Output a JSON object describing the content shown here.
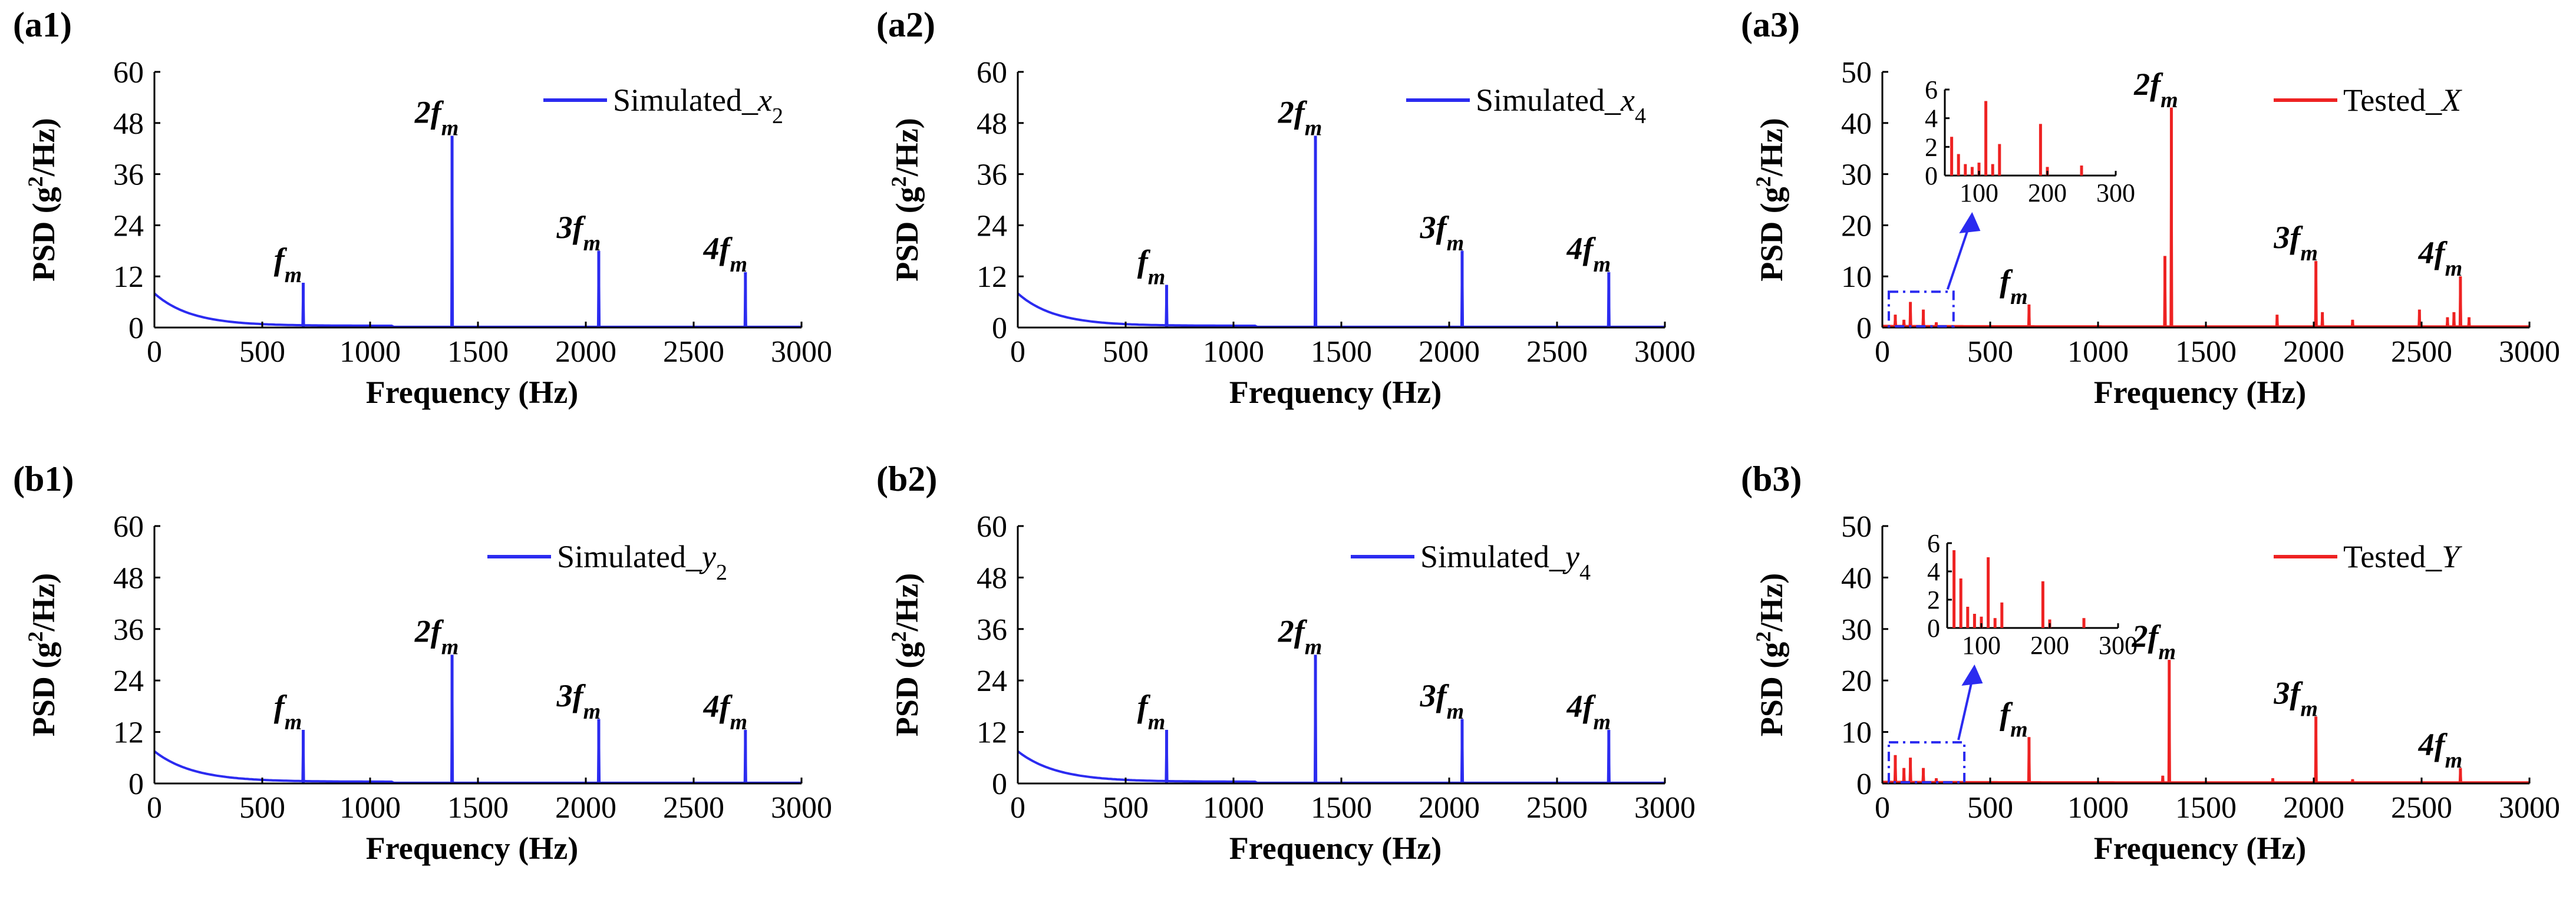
{
  "figure": {
    "colors": {
      "simulated": "#2b2bf0",
      "tested": "#ee2222",
      "axis": "#000000"
    },
    "xlabel": "Frequency (Hz)",
    "ylabel": "PSD (g2/Hz)"
  },
  "chart_data": [
    {
      "id": "a1",
      "panel_label": "(a1)",
      "type": "line",
      "title": "",
      "xlabel": "Frequency (Hz)",
      "ylabel": "PSD (g2/Hz)",
      "xlim": [
        0,
        3000
      ],
      "ylim": [
        0,
        60
      ],
      "xticks": [
        0,
        500,
        1000,
        1500,
        2000,
        2500,
        3000
      ],
      "yticks": [
        0,
        12,
        24,
        36,
        48,
        60
      ],
      "legend": {
        "pre": "Simulated_",
        "var": "x",
        "sub": "2",
        "position": "top-right"
      },
      "color_key": "simulated",
      "baseline": {
        "start": 8,
        "decay": 170,
        "floor": 0.4,
        "end": 1100
      },
      "peaks": [
        [
          690,
          10.5
        ],
        [
          1380,
          45
        ],
        [
          2060,
          18
        ],
        [
          2740,
          13
        ]
      ],
      "annotations": [
        {
          "num": "",
          "x": 690,
          "y": 10.5,
          "base": "f",
          "sub": "m"
        },
        {
          "num": "2",
          "x": 1380,
          "y": 45,
          "base": "f",
          "sub": "m"
        },
        {
          "num": "3",
          "x": 2060,
          "y": 18,
          "base": "f",
          "sub": "m"
        },
        {
          "num": "4",
          "x": 2740,
          "y": 13,
          "base": "f",
          "sub": "m"
        }
      ]
    },
    {
      "id": "a2",
      "panel_label": "(a2)",
      "type": "line",
      "title": "",
      "xlabel": "Frequency (Hz)",
      "ylabel": "PSD (g2/Hz)",
      "xlim": [
        0,
        3000
      ],
      "ylim": [
        0,
        60
      ],
      "xticks": [
        0,
        500,
        1000,
        1500,
        2000,
        2500,
        3000
      ],
      "yticks": [
        0,
        12,
        24,
        36,
        48,
        60
      ],
      "legend": {
        "pre": "Simulated_",
        "var": "x",
        "sub": "4",
        "position": "top-right"
      },
      "color_key": "simulated",
      "baseline": {
        "start": 8,
        "decay": 170,
        "floor": 0.4,
        "end": 1100
      },
      "peaks": [
        [
          690,
          10
        ],
        [
          1380,
          45
        ],
        [
          2060,
          18
        ],
        [
          2740,
          13
        ]
      ],
      "annotations": [
        {
          "num": "",
          "x": 690,
          "y": 10,
          "base": "f",
          "sub": "m"
        },
        {
          "num": "2",
          "x": 1380,
          "y": 45,
          "base": "f",
          "sub": "m"
        },
        {
          "num": "3",
          "x": 2060,
          "y": 18,
          "base": "f",
          "sub": "m"
        },
        {
          "num": "4",
          "x": 2740,
          "y": 13,
          "base": "f",
          "sub": "m"
        }
      ]
    },
    {
      "id": "a3",
      "panel_label": "(a3)",
      "type": "line",
      "title": "",
      "xlabel": "Frequency (Hz)",
      "ylabel": "PSD (g2/Hz)",
      "xlim": [
        0,
        3000
      ],
      "ylim": [
        0,
        50
      ],
      "xticks": [
        0,
        500,
        1000,
        1500,
        2000,
        2500,
        3000
      ],
      "yticks": [
        0,
        10,
        20,
        30,
        40,
        50
      ],
      "legend": {
        "pre": "Tested_",
        "var": "X",
        "sub": "",
        "position": "top-right"
      },
      "color_key": "tested",
      "baseline": {
        "start": 0.3,
        "decay": 500,
        "floor": 0.2,
        "end": 3000
      },
      "peaks": [
        [
          60,
          2.5
        ],
        [
          100,
          1.5
        ],
        [
          130,
          5
        ],
        [
          190,
          3.5
        ],
        [
          250,
          1
        ],
        [
          680,
          4.5
        ],
        [
          1310,
          14
        ],
        [
          1340,
          43
        ],
        [
          1830,
          2.5
        ],
        [
          2010,
          13
        ],
        [
          2040,
          3
        ],
        [
          2180,
          1.5
        ],
        [
          2490,
          3.5
        ],
        [
          2620,
          2
        ],
        [
          2650,
          3
        ],
        [
          2680,
          10
        ],
        [
          2720,
          2
        ]
      ],
      "annotations": [
        {
          "num": "",
          "x": 680,
          "y": 4.5,
          "base": "f",
          "sub": "m"
        },
        {
          "num": "2",
          "x": 1340,
          "y": 43,
          "base": "f",
          "sub": "m"
        },
        {
          "num": "3",
          "x": 2010,
          "y": 13,
          "base": "f",
          "sub": "m"
        },
        {
          "num": "4",
          "x": 2680,
          "y": 10,
          "base": "f",
          "sub": "m"
        }
      ],
      "zoom_box": {
        "xlim": [
          30,
          330
        ],
        "ylim": [
          0,
          7
        ]
      },
      "inset": {
        "xlim": [
          50,
          300
        ],
        "ylim": [
          0,
          6
        ],
        "xticks": [
          100,
          200,
          300
        ],
        "yticks": [
          0,
          2,
          4,
          6
        ],
        "peaks": [
          [
            60,
            2.7
          ],
          [
            70,
            1.5
          ],
          [
            80,
            0.8
          ],
          [
            90,
            0.6
          ],
          [
            100,
            0.9
          ],
          [
            110,
            5.2
          ],
          [
            120,
            0.8
          ],
          [
            130,
            2.2
          ],
          [
            190,
            3.6
          ],
          [
            200,
            0.6
          ],
          [
            250,
            0.7
          ]
        ]
      }
    },
    {
      "id": "b1",
      "panel_label": "(b1)",
      "type": "line",
      "title": "",
      "xlabel": "Frequency (Hz)",
      "ylabel": "PSD (g2/Hz)",
      "xlim": [
        0,
        3000
      ],
      "ylim": [
        0,
        60
      ],
      "xticks": [
        0,
        500,
        1000,
        1500,
        2000,
        2500,
        3000
      ],
      "yticks": [
        0,
        12,
        24,
        36,
        48,
        60
      ],
      "legend": {
        "pre": "Simulated_",
        "var": "y",
        "sub": "2",
        "position": "top-right"
      },
      "color_key": "simulated",
      "baseline": {
        "start": 7.5,
        "decay": 180,
        "floor": 0.4,
        "end": 1100
      },
      "peaks": [
        [
          690,
          12.5
        ],
        [
          1380,
          30
        ],
        [
          2060,
          15
        ],
        [
          2740,
          12.5
        ]
      ],
      "annotations": [
        {
          "num": "",
          "x": 690,
          "y": 12.5,
          "base": "f",
          "sub": "m"
        },
        {
          "num": "2",
          "x": 1380,
          "y": 30,
          "base": "f",
          "sub": "m"
        },
        {
          "num": "3",
          "x": 2060,
          "y": 15,
          "base": "f",
          "sub": "m"
        },
        {
          "num": "4",
          "x": 2740,
          "y": 12.5,
          "base": "f",
          "sub": "m"
        }
      ]
    },
    {
      "id": "b2",
      "panel_label": "(b2)",
      "type": "line",
      "title": "",
      "xlabel": "Frequency (Hz)",
      "ylabel": "PSD (g2/Hz)",
      "xlim": [
        0,
        3000
      ],
      "ylim": [
        0,
        60
      ],
      "xticks": [
        0,
        500,
        1000,
        1500,
        2000,
        2500,
        3000
      ],
      "yticks": [
        0,
        12,
        24,
        36,
        48,
        60
      ],
      "legend": {
        "pre": "Simulated_",
        "var": "y",
        "sub": "4",
        "position": "top-right"
      },
      "color_key": "simulated",
      "baseline": {
        "start": 7.5,
        "decay": 180,
        "floor": 0.4,
        "end": 1100
      },
      "peaks": [
        [
          690,
          12.5
        ],
        [
          1380,
          30
        ],
        [
          2060,
          15
        ],
        [
          2740,
          12.5
        ]
      ],
      "annotations": [
        {
          "num": "",
          "x": 690,
          "y": 12.5,
          "base": "f",
          "sub": "m"
        },
        {
          "num": "2",
          "x": 1380,
          "y": 30,
          "base": "f",
          "sub": "m"
        },
        {
          "num": "3",
          "x": 2060,
          "y": 15,
          "base": "f",
          "sub": "m"
        },
        {
          "num": "4",
          "x": 2740,
          "y": 12.5,
          "base": "f",
          "sub": "m"
        }
      ]
    },
    {
      "id": "b3",
      "panel_label": "(b3)",
      "type": "line",
      "title": "",
      "xlabel": "Frequency (Hz)",
      "ylabel": "PSD (g2/Hz)",
      "xlim": [
        0,
        3000
      ],
      "ylim": [
        0,
        50
      ],
      "xticks": [
        0,
        500,
        1000,
        1500,
        2000,
        2500,
        3000
      ],
      "yticks": [
        0,
        10,
        20,
        30,
        40,
        50
      ],
      "legend": {
        "pre": "Tested_",
        "var": "Y",
        "sub": "",
        "position": "top-right"
      },
      "color_key": "tested",
      "baseline": {
        "start": 0.3,
        "decay": 500,
        "floor": 0.2,
        "end": 3000
      },
      "peaks": [
        [
          60,
          5.5
        ],
        [
          100,
          3
        ],
        [
          130,
          5
        ],
        [
          190,
          3
        ],
        [
          250,
          1
        ],
        [
          680,
          9
        ],
        [
          1300,
          1.5
        ],
        [
          1330,
          24
        ],
        [
          1810,
          1
        ],
        [
          2010,
          13
        ],
        [
          2180,
          0.8
        ],
        [
          2680,
          3
        ]
      ],
      "annotations": [
        {
          "num": "",
          "x": 680,
          "y": 9,
          "base": "f",
          "sub": "m"
        },
        {
          "num": "2",
          "x": 1330,
          "y": 24,
          "base": "f",
          "sub": "m"
        },
        {
          "num": "3",
          "x": 2010,
          "y": 13,
          "base": "f",
          "sub": "m"
        },
        {
          "num": "4",
          "x": 2680,
          "y": 3,
          "base": "f",
          "sub": "m"
        }
      ],
      "zoom_box": {
        "xlim": [
          30,
          380
        ],
        "ylim": [
          0,
          8
        ]
      },
      "inset": {
        "xlim": [
          50,
          300
        ],
        "ylim": [
          0,
          6
        ],
        "xticks": [
          100,
          200,
          300
        ],
        "yticks": [
          0,
          2,
          4,
          6
        ],
        "peaks": [
          [
            60,
            5.5
          ],
          [
            70,
            3.5
          ],
          [
            80,
            1.5
          ],
          [
            90,
            1
          ],
          [
            100,
            0.8
          ],
          [
            110,
            5
          ],
          [
            120,
            0.7
          ],
          [
            130,
            1.8
          ],
          [
            190,
            3.3
          ],
          [
            200,
            0.6
          ],
          [
            250,
            0.7
          ]
        ]
      }
    }
  ]
}
